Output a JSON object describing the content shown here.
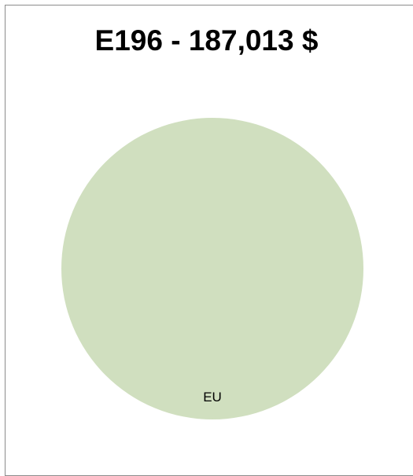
{
  "chart_data": {
    "type": "pie",
    "title": "E196 - 187,013 $",
    "categories": [
      "EU"
    ],
    "values": [
      187013
    ],
    "colors": [
      "#d0dfbf"
    ],
    "legend": "none"
  }
}
